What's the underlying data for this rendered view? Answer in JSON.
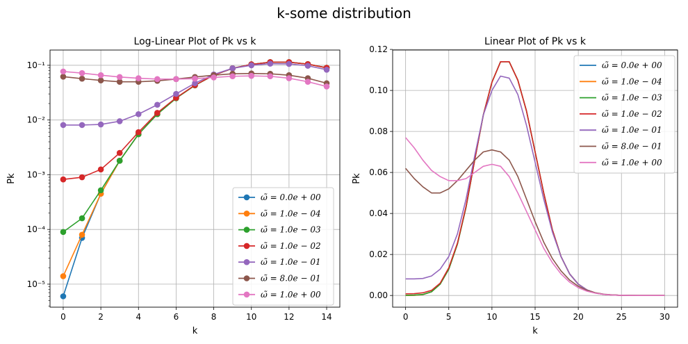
{
  "figure_title": "k-some distribution",
  "chart_data": [
    {
      "type": "line",
      "title": "Log-Linear Plot of Pk vs k",
      "xlabel": "k",
      "ylabel": "Pk",
      "yscale": "log",
      "markers": true,
      "grid": true,
      "legend_position": "lower-right",
      "xlim": [
        -0.7,
        14.7
      ],
      "ylim": [
        3.8e-06,
        0.19
      ],
      "xticks": [
        0,
        2,
        4,
        6,
        8,
        10,
        12,
        14
      ],
      "xtick_labels": [
        "0",
        "2",
        "4",
        "6",
        "8",
        "10",
        "12",
        "14"
      ],
      "yticks": [
        1e-05,
        0.0001,
        0.001,
        0.01,
        0.1
      ],
      "ytick_labels": [
        "10⁻⁵",
        "10⁻⁴",
        "10⁻³",
        "10⁻²",
        "10⁻¹"
      ],
      "x": [
        0,
        1,
        2,
        3,
        4,
        5,
        6,
        7,
        8,
        9,
        10,
        11,
        12,
        13,
        14
      ],
      "series": [
        {
          "name": "ω̃ = 0.0e + 00",
          "color": "#1f77b4",
          "values": [
            6e-06,
            7e-05,
            0.00045,
            0.0018,
            0.0055,
            0.0128,
            0.025,
            0.043,
            0.066,
            0.088,
            0.104,
            0.114,
            0.114,
            0.105,
            0.09
          ]
        },
        {
          "name": "ω̃ = 1.0e − 04",
          "color": "#ff7f0e",
          "values": [
            1.4e-05,
            8e-05,
            0.00045,
            0.0018,
            0.0055,
            0.0128,
            0.025,
            0.043,
            0.066,
            0.088,
            0.104,
            0.114,
            0.114,
            0.105,
            0.09
          ]
        },
        {
          "name": "ω̃ = 1.0e − 03",
          "color": "#2ca02c",
          "values": [
            9e-05,
            0.00016,
            0.00052,
            0.0018,
            0.0055,
            0.0128,
            0.025,
            0.043,
            0.066,
            0.088,
            0.104,
            0.114,
            0.114,
            0.105,
            0.09
          ]
        },
        {
          "name": "ω̃ = 1.0e − 02",
          "color": "#d62728",
          "values": [
            0.00082,
            0.0009,
            0.00125,
            0.0025,
            0.006,
            0.0135,
            0.0255,
            0.0435,
            0.066,
            0.088,
            0.104,
            0.114,
            0.114,
            0.105,
            0.09
          ]
        },
        {
          "name": "ω̃ = 1.0e − 01",
          "color": "#9467bd",
          "values": [
            0.0081,
            0.0081,
            0.0083,
            0.0095,
            0.0128,
            0.019,
            0.03,
            0.047,
            0.068,
            0.088,
            0.1,
            0.107,
            0.106,
            0.098,
            0.083
          ]
        },
        {
          "name": "ω̃ = 8.0e − 01",
          "color": "#8c564b",
          "values": [
            0.062,
            0.057,
            0.053,
            0.05,
            0.05,
            0.052,
            0.056,
            0.061,
            0.066,
            0.07,
            0.071,
            0.07,
            0.066,
            0.058,
            0.047
          ]
        },
        {
          "name": "ω̃ = 1.0e + 00",
          "color": "#e377c2",
          "values": [
            0.077,
            0.072,
            0.066,
            0.061,
            0.058,
            0.056,
            0.056,
            0.057,
            0.06,
            0.063,
            0.064,
            0.063,
            0.058,
            0.05,
            0.041
          ]
        }
      ]
    },
    {
      "type": "line",
      "title": "Linear Plot of Pk vs k",
      "xlabel": "k",
      "ylabel": "Pk",
      "yscale": "linear",
      "markers": false,
      "grid": true,
      "legend_position": "upper-right",
      "xlim": [
        -1.5,
        31.5
      ],
      "ylim": [
        -0.0057,
        0.1197
      ],
      "xticks": [
        0,
        5,
        10,
        15,
        20,
        25,
        30
      ],
      "xtick_labels": [
        "0",
        "5",
        "10",
        "15",
        "20",
        "25",
        "30"
      ],
      "yticks": [
        0.0,
        0.02,
        0.04,
        0.06,
        0.08,
        0.1,
        0.12
      ],
      "ytick_labels": [
        "0.00",
        "0.02",
        "0.04",
        "0.06",
        "0.08",
        "0.10",
        "0.12"
      ],
      "x": [
        0,
        1,
        2,
        3,
        4,
        5,
        6,
        7,
        8,
        9,
        10,
        11,
        12,
        13,
        14,
        15,
        16,
        17,
        18,
        19,
        20,
        21,
        22,
        23,
        24,
        25,
        26,
        27,
        28,
        29,
        30
      ],
      "series": [
        {
          "name": "ω̃ = 0.0e + 00",
          "color": "#1f77b4",
          "values": [
            0.0,
            0.0001,
            0.0004,
            0.0018,
            0.0055,
            0.0128,
            0.025,
            0.043,
            0.066,
            0.088,
            0.104,
            0.114,
            0.114,
            0.105,
            0.09,
            0.07,
            0.05,
            0.032,
            0.019,
            0.0105,
            0.0055,
            0.0027,
            0.0012,
            0.0005,
            0.0002,
            0.0001,
            0.0,
            0.0,
            0.0,
            0.0,
            0.0
          ]
        },
        {
          "name": "ω̃ = 1.0e − 04",
          "color": "#ff7f0e",
          "values": [
            0.0,
            0.0001,
            0.0004,
            0.0018,
            0.0055,
            0.0128,
            0.025,
            0.043,
            0.066,
            0.088,
            0.104,
            0.114,
            0.114,
            0.105,
            0.09,
            0.07,
            0.05,
            0.032,
            0.019,
            0.0105,
            0.0055,
            0.0027,
            0.0012,
            0.0005,
            0.0002,
            0.0001,
            0.0,
            0.0,
            0.0,
            0.0,
            0.0
          ]
        },
        {
          "name": "ω̃ = 1.0e − 03",
          "color": "#2ca02c",
          "values": [
            0.0001,
            0.0002,
            0.0005,
            0.0018,
            0.0055,
            0.0128,
            0.025,
            0.043,
            0.066,
            0.088,
            0.104,
            0.114,
            0.114,
            0.105,
            0.09,
            0.07,
            0.05,
            0.032,
            0.019,
            0.0105,
            0.0055,
            0.0027,
            0.0012,
            0.0005,
            0.0002,
            0.0001,
            0.0,
            0.0,
            0.0,
            0.0,
            0.0
          ]
        },
        {
          "name": "ω̃ = 1.0e − 02",
          "color": "#d62728",
          "values": [
            0.0008,
            0.0009,
            0.0013,
            0.0025,
            0.006,
            0.0135,
            0.0255,
            0.0435,
            0.066,
            0.088,
            0.104,
            0.114,
            0.114,
            0.105,
            0.09,
            0.07,
            0.05,
            0.032,
            0.019,
            0.0105,
            0.0055,
            0.0027,
            0.0012,
            0.0005,
            0.0002,
            0.0001,
            0.0,
            0.0,
            0.0,
            0.0,
            0.0
          ]
        },
        {
          "name": "ω̃ = 1.0e − 01",
          "color": "#9467bd",
          "values": [
            0.0081,
            0.0081,
            0.0083,
            0.0095,
            0.0128,
            0.019,
            0.03,
            0.047,
            0.068,
            0.088,
            0.1,
            0.107,
            0.106,
            0.098,
            0.083,
            0.065,
            0.047,
            0.031,
            0.019,
            0.0105,
            0.0055,
            0.0027,
            0.0012,
            0.0005,
            0.0002,
            0.0001,
            0.0,
            0.0,
            0.0,
            0.0,
            0.0
          ]
        },
        {
          "name": "ω̃ = 8.0e − 01",
          "color": "#8c564b",
          "values": [
            0.062,
            0.057,
            0.053,
            0.05,
            0.05,
            0.052,
            0.056,
            0.061,
            0.066,
            0.07,
            0.071,
            0.07,
            0.066,
            0.058,
            0.047,
            0.036,
            0.026,
            0.018,
            0.012,
            0.0075,
            0.0045,
            0.0025,
            0.0013,
            0.0006,
            0.0003,
            0.0001,
            0.0001,
            0.0,
            0.0,
            0.0,
            0.0
          ]
        },
        {
          "name": "ω̃ = 1.0e + 00",
          "color": "#e377c2",
          "values": [
            0.077,
            0.072,
            0.066,
            0.061,
            0.058,
            0.056,
            0.056,
            0.057,
            0.06,
            0.063,
            0.064,
            0.063,
            0.058,
            0.05,
            0.041,
            0.032,
            0.023,
            0.016,
            0.0105,
            0.0065,
            0.0038,
            0.0021,
            0.0011,
            0.0005,
            0.0002,
            0.0001,
            0.0,
            0.0,
            0.0,
            0.0,
            0.0
          ]
        }
      ]
    }
  ]
}
